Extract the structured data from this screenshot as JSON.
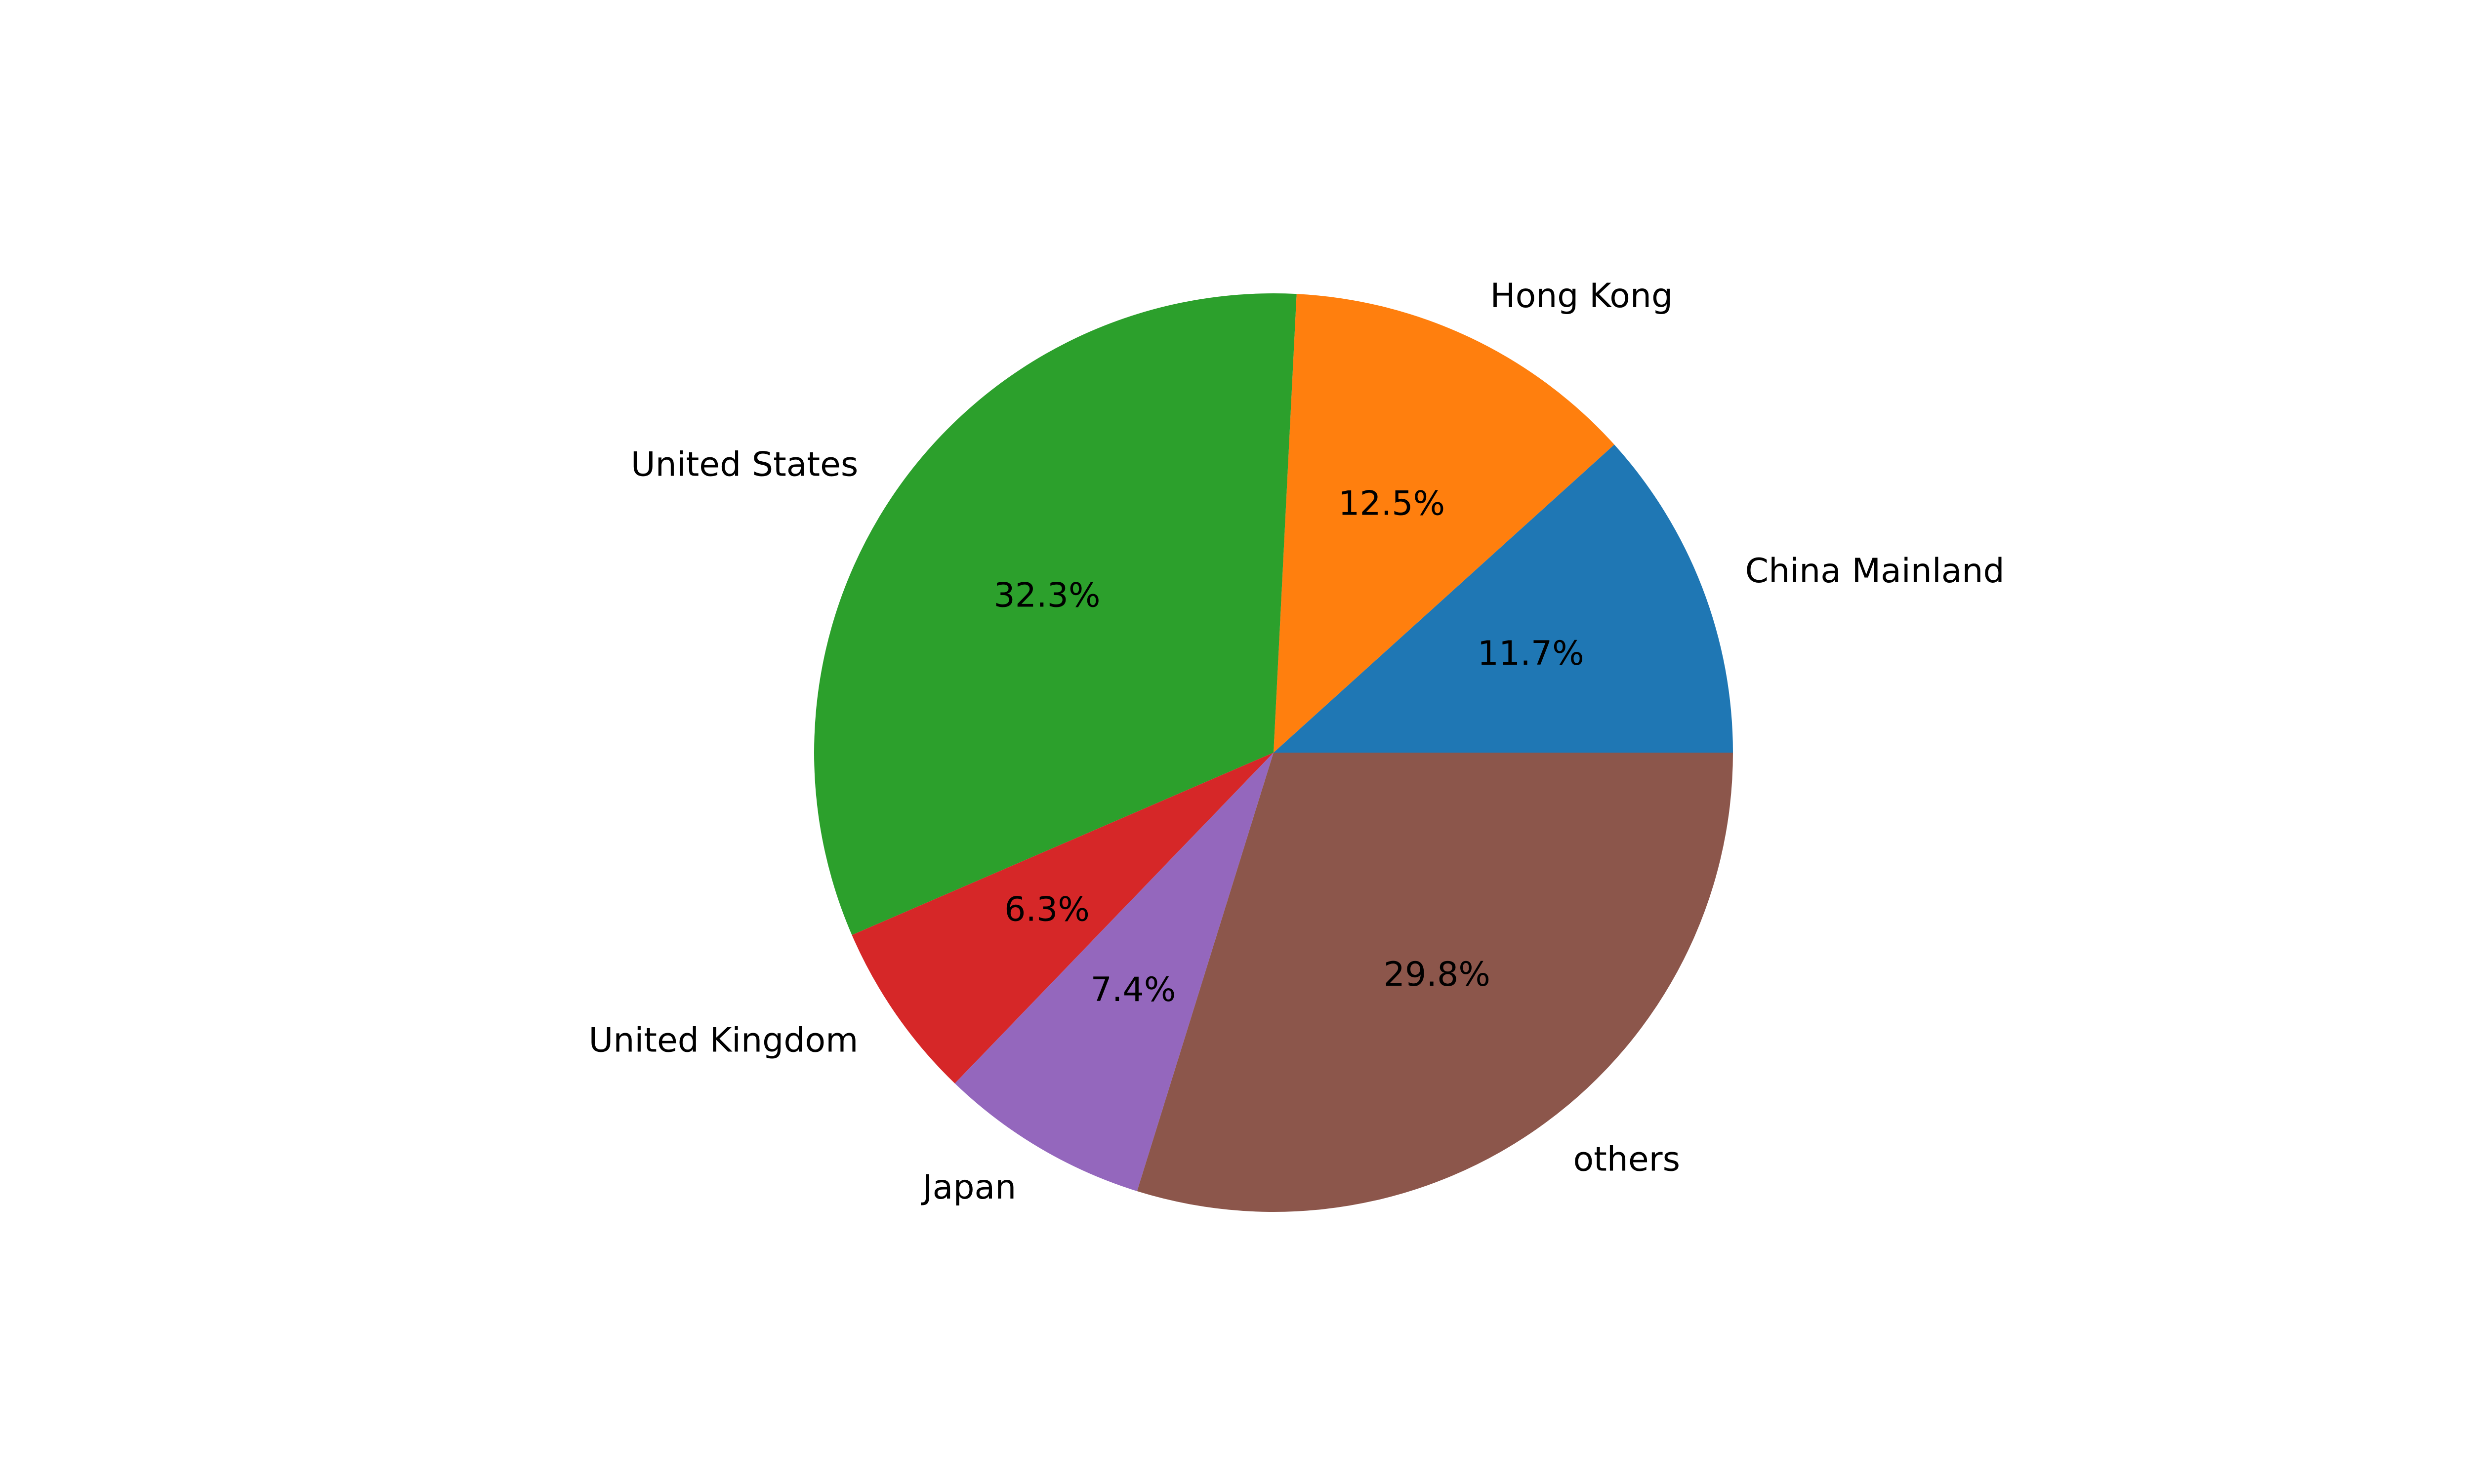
{
  "chart_data": {
    "type": "pie",
    "title": "",
    "start_angle_deg": 0,
    "direction": "counterclockwise",
    "slices": [
      {
        "label": "China Mainland",
        "value": 11.7,
        "pct_text": "11.7%",
        "color": "#1f77b4"
      },
      {
        "label": "Hong Kong",
        "value": 12.5,
        "pct_text": "12.5%",
        "color": "#ff7f0e"
      },
      {
        "label": "United States",
        "value": 32.3,
        "pct_text": "32.3%",
        "color": "#2ca02c"
      },
      {
        "label": "United Kingdom",
        "value": 6.3,
        "pct_text": "6.3%",
        "color": "#d62728"
      },
      {
        "label": "Japan",
        "value": 7.4,
        "pct_text": "7.4%",
        "color": "#9467bd"
      },
      {
        "label": "others",
        "value": 29.8,
        "pct_text": "29.8%",
        "color": "#8c564b"
      }
    ]
  }
}
